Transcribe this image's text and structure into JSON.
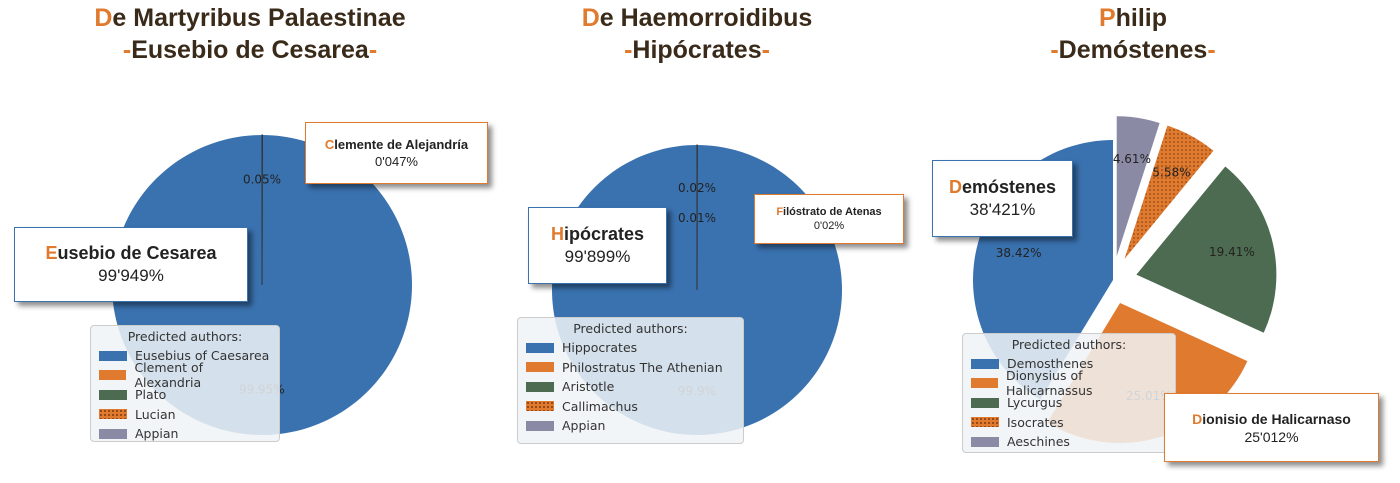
{
  "chart_data": [
    {
      "type": "pie",
      "title": "De Martyribus Palaestinae",
      "subtitle": "-Eusebio de Cesarea-",
      "categories": [
        "Eusebius of Caesarea",
        "Clement of Alexandria",
        "Plato",
        "Lucian",
        "Appian"
      ],
      "values": [
        99.95,
        0.05,
        0,
        0,
        0
      ],
      "value_labels": [
        "99.95%",
        "0.05%",
        null,
        null,
        null
      ],
      "colors": [
        "#3a72b0",
        "#e07a2e",
        "#4d6b50",
        "#e07a2e",
        "#8a8aa5"
      ],
      "hatch": [
        null,
        null,
        null,
        "dots",
        null
      ],
      "exploded": false,
      "legend_title": "Predicted authors:",
      "annotations": [
        {
          "title": "Eusebio de Cesarea",
          "text": "99'949%",
          "color": "#3a72b0"
        },
        {
          "title": "Clemente de Alejandría",
          "text": "0'047%",
          "color": "#e07a2e"
        }
      ]
    },
    {
      "type": "pie",
      "title": "De Haemorroidibus",
      "subtitle": "-Hipócrates-",
      "categories": [
        "Hippocrates",
        "Philostratus The Athenian",
        "Aristotle",
        "Callimachus",
        "Appian"
      ],
      "values": [
        99.9,
        0.02,
        0.01,
        0,
        0
      ],
      "value_labels": [
        "99.9%",
        "0.02%",
        "0.01%",
        null,
        null
      ],
      "colors": [
        "#3a72b0",
        "#e07a2e",
        "#4d6b50",
        "#e07a2e",
        "#8a8aa5"
      ],
      "hatch": [
        null,
        null,
        null,
        "dots",
        null
      ],
      "exploded": false,
      "legend_title": "Predicted authors:",
      "annotations": [
        {
          "title": "Hipócrates",
          "text": "99'899%",
          "color": "#3a72b0"
        },
        {
          "title": "Filóstrato de Atenas",
          "text": "0'02%",
          "color": "#e07a2e"
        }
      ]
    },
    {
      "type": "pie",
      "title": "Philip",
      "subtitle": "-Demóstenes-",
      "categories": [
        "Demosthenes",
        "Dionysius of Halicarnassus",
        "Lycurgus",
        "Isocrates",
        "Aeschines"
      ],
      "values": [
        38.42,
        25.01,
        19.41,
        5.58,
        4.61
      ],
      "colors": [
        "#3a72b0",
        "#e07a2e",
        "#4d6b50",
        "#e07a2e",
        "#8a8aa5"
      ],
      "hatch": [
        null,
        null,
        null,
        "dots",
        null
      ],
      "exploded": true,
      "legend_title": "Predicted authors:",
      "annotations": [
        {
          "title": "Demóstenes",
          "text": "38'421%",
          "color": "#3a72b0"
        },
        {
          "title": "Dionisio de Halicarnaso",
          "text": "25'012%",
          "color": "#e07a2e"
        }
      ]
    }
  ]
}
